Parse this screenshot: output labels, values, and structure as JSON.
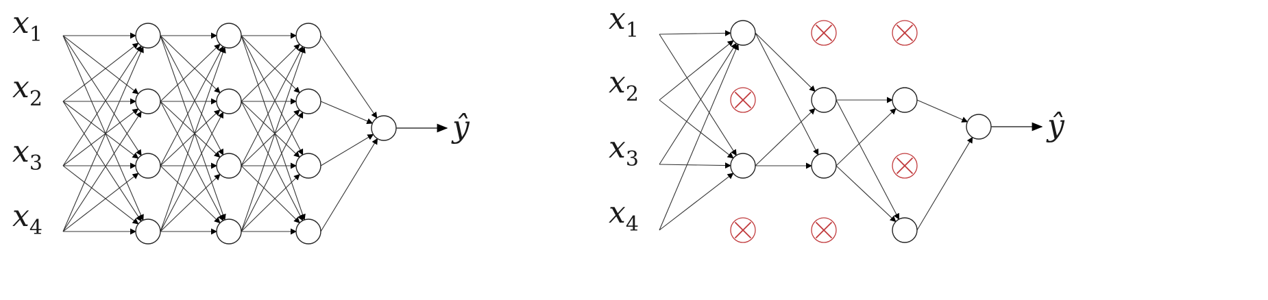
{
  "left_network": {
    "inputs": [
      {
        "base": "x",
        "sub": "1"
      },
      {
        "base": "x",
        "sub": "2"
      },
      {
        "base": "x",
        "sub": "3"
      },
      {
        "base": "x",
        "sub": "4"
      }
    ],
    "output_label": "ŷ",
    "hidden_layers": [
      {
        "units": [
          {
            "dropped": false
          },
          {
            "dropped": false
          },
          {
            "dropped": false
          },
          {
            "dropped": false
          }
        ]
      },
      {
        "units": [
          {
            "dropped": false
          },
          {
            "dropped": false
          },
          {
            "dropped": false
          },
          {
            "dropped": false
          }
        ]
      },
      {
        "units": [
          {
            "dropped": false
          },
          {
            "dropped": false
          },
          {
            "dropped": false
          },
          {
            "dropped": false
          }
        ]
      }
    ]
  },
  "right_network": {
    "inputs": [
      {
        "base": "x",
        "sub": "1"
      },
      {
        "base": "x",
        "sub": "2"
      },
      {
        "base": "x",
        "sub": "3"
      },
      {
        "base": "x",
        "sub": "4"
      }
    ],
    "output_label": "ŷ",
    "hidden_layers": [
      {
        "units": [
          {
            "dropped": false
          },
          {
            "dropped": true
          },
          {
            "dropped": false
          },
          {
            "dropped": true
          }
        ]
      },
      {
        "units": [
          {
            "dropped": true
          },
          {
            "dropped": false
          },
          {
            "dropped": false
          },
          {
            "dropped": true
          }
        ]
      },
      {
        "units": [
          {
            "dropped": true
          },
          {
            "dropped": false
          },
          {
            "dropped": true
          },
          {
            "dropped": false
          }
        ]
      }
    ]
  },
  "colors": {
    "line": "#333333",
    "node_stroke": "#222222",
    "arrow_fill": "#000000",
    "dropped_cross": "#c0393b"
  }
}
